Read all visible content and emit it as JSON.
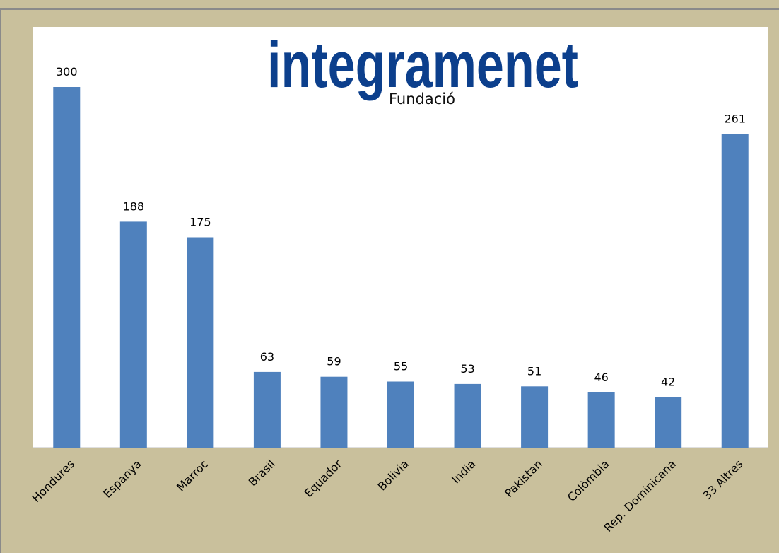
{
  "chart_data": {
    "type": "bar",
    "logo": {
      "name": "integramenet",
      "subtitle": "Fundació"
    },
    "categories": [
      "Hondures",
      "Espanya",
      "Marroc",
      "Brasil",
      "Equador",
      "Bolivia",
      "India",
      "Pakistan",
      "Colòmbia",
      "Rep. Dominicana",
      "33 Altres"
    ],
    "values": [
      300,
      188,
      175,
      63,
      59,
      55,
      53,
      51,
      46,
      42,
      261
    ],
    "color": "#4f81bd",
    "ylim": [
      0,
      350
    ]
  }
}
